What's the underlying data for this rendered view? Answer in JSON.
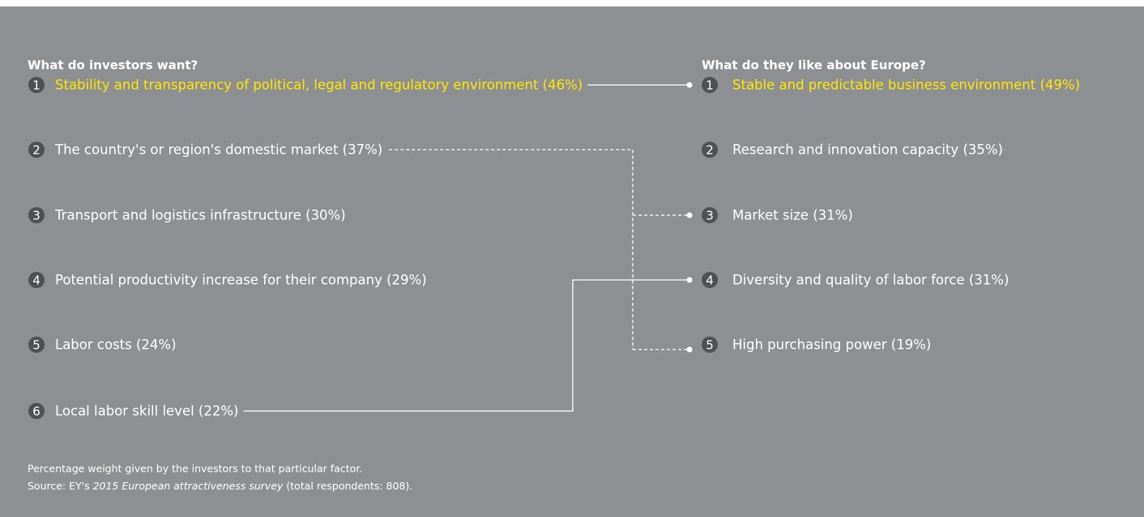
{
  "left": {
    "heading": "What do investors want?",
    "items": [
      {
        "number": 1,
        "text": "Stability and transparency of political, legal and regulatory environment (46%)"
      },
      {
        "number": 2,
        "text": "The country's or region's domestic market (37%)"
      },
      {
        "number": 3,
        "text": "Transport and logistics infrastructure (30%)"
      },
      {
        "number": 4,
        "text": "Potential productivity increase for their company (29%)"
      },
      {
        "number": 5,
        "text": "Labor costs (24%)"
      },
      {
        "number": 6,
        "text": "Local labor skill level (22%)"
      }
    ]
  },
  "right": {
    "heading": "What do they like about Europe?",
    "items": [
      {
        "number": 1,
        "text": "Stable and predictable business environment (49%)"
      },
      {
        "number": 2,
        "text": "Research and innovation capacity (35%)"
      },
      {
        "number": 3,
        "text": "Market size (31%)"
      },
      {
        "number": 4,
        "text": "Diversity and quality of labor force (31%)"
      },
      {
        "number": 5,
        "text": "High purchasing power (19%)"
      }
    ]
  },
  "footer": {
    "note": "Percentage weight given by the investors to that particular factor.",
    "source_prefix": "Source: EY's ",
    "source_title": "2015 European attractiveness survey",
    "source_suffix": " (total respondents: 808)."
  }
}
